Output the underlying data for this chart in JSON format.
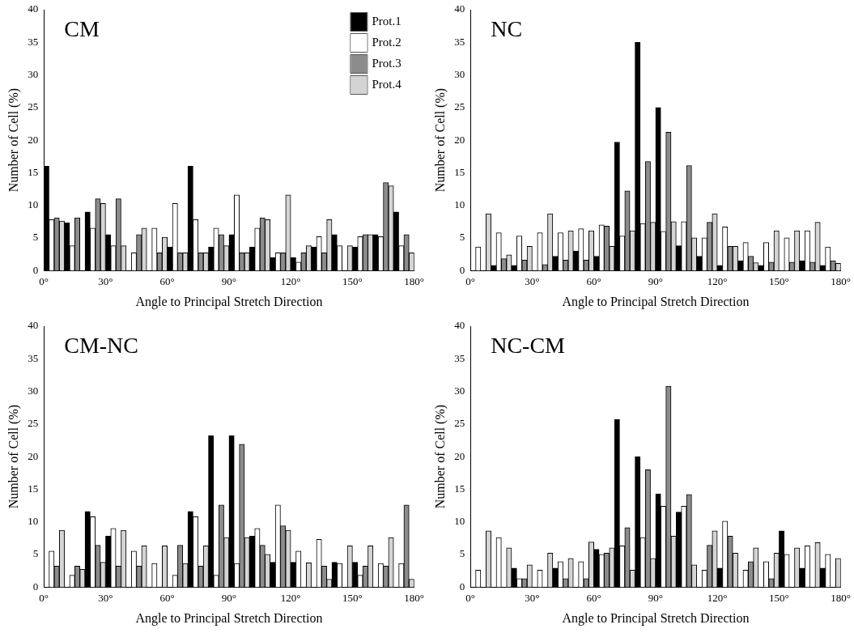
{
  "chart_data": [
    {
      "type": "bar",
      "title": "CM",
      "xlabel": "Angle to Principal Stretch Direction",
      "ylabel": "Number of Cell (%)",
      "x": [
        5,
        15,
        25,
        35,
        45,
        55,
        65,
        75,
        85,
        95,
        105,
        115,
        125,
        135,
        145,
        155,
        165,
        175
      ],
      "xlim": [
        0,
        180
      ],
      "xticks": [
        {
          "value": 0,
          "label": "0°"
        },
        {
          "value": 30,
          "label": "30°"
        },
        {
          "value": 60,
          "label": "60°"
        },
        {
          "value": 90,
          "label": "90°"
        },
        {
          "value": 120,
          "label": "120°"
        },
        {
          "value": 150,
          "label": "150°"
        },
        {
          "value": 180,
          "label": "180°"
        }
      ],
      "ylim": [
        0,
        40
      ],
      "yticks": [
        0,
        5,
        10,
        15,
        20,
        25,
        30,
        35,
        40
      ],
      "grid": false,
      "legend": "top right",
      "series": [
        {
          "name": "Prot.1",
          "color": "#000000",
          "values": [
            16,
            7.3,
            9,
            5.5,
            0,
            0,
            3.6,
            16,
            3.6,
            5.5,
            3.6,
            2,
            2,
            3.6,
            5.5,
            3.6,
            5.5,
            9
          ]
        },
        {
          "name": "Prot.2",
          "color": "#ffffff",
          "values": [
            7.8,
            3.8,
            6.5,
            3.8,
            2.7,
            6.5,
            10.3,
            7.8,
            6.5,
            11.6,
            6.5,
            2.7,
            1.3,
            5.2,
            3.8,
            5.2,
            5.2,
            3.8
          ]
        },
        {
          "name": "Prot.3",
          "color": "#8c8c8c",
          "values": [
            8.1,
            8.1,
            11,
            11,
            5.5,
            2.7,
            2.7,
            2.7,
            5.5,
            2.7,
            8.1,
            2.7,
            2.7,
            2.7,
            0,
            5.5,
            13.5,
            5.5
          ]
        },
        {
          "name": "Prot.4",
          "color": "#d4d4d4",
          "values": [
            7.6,
            0,
            10.3,
            3.8,
            6.5,
            5.1,
            2.7,
            2.7,
            3.8,
            2.7,
            7.8,
            11.6,
            3.8,
            7.8,
            3.8,
            5.5,
            13,
            2.7
          ]
        }
      ]
    },
    {
      "type": "bar",
      "title": "NC",
      "xlabel": "Angle to Principal Stretch Direction",
      "ylabel": "Number of Cell (%)",
      "x": [
        5,
        15,
        25,
        35,
        45,
        55,
        65,
        75,
        85,
        95,
        105,
        115,
        125,
        135,
        145,
        155,
        165,
        175
      ],
      "xlim": [
        0,
        180
      ],
      "xticks": [
        {
          "value": 0,
          "label": "0°"
        },
        {
          "value": 30,
          "label": "30°"
        },
        {
          "value": 60,
          "label": "60°"
        },
        {
          "value": 90,
          "label": "90°"
        },
        {
          "value": 120,
          "label": "120°"
        },
        {
          "value": 150,
          "label": "150°"
        },
        {
          "value": 180,
          "label": "180°"
        }
      ],
      "ylim": [
        0,
        40
      ],
      "yticks": [
        0,
        5,
        10,
        15,
        20,
        25,
        30,
        35,
        40
      ],
      "grid": false,
      "series": [
        {
          "color": "#000000",
          "values": [
            0,
            0.8,
            0.8,
            0,
            2.2,
            3,
            2.2,
            19.7,
            35,
            25,
            3.8,
            2.2,
            0.8,
            1.5,
            0.8,
            0,
            1.5,
            0.8
          ]
        },
        {
          "color": "#ffffff",
          "values": [
            3.6,
            5.8,
            5.3,
            5.8,
            5.8,
            6.4,
            7,
            5.3,
            7.2,
            6,
            7.5,
            5,
            6.7,
            4.3,
            4.3,
            5,
            6.1,
            3.6
          ]
        },
        {
          "color": "#8c8c8c",
          "values": [
            0,
            1.8,
            1.6,
            0.9,
            1.6,
            1.6,
            6.8,
            12.2,
            16.7,
            21.2,
            16.1,
            7.4,
            3.7,
            2.2,
            1.3,
            1.3,
            1.3,
            1.5
          ]
        },
        {
          "color": "#d4d4d4",
          "values": [
            8.7,
            2.4,
            3.7,
            8.7,
            6.1,
            6.1,
            3.7,
            6.1,
            7.4,
            7.5,
            5,
            8.7,
            3.7,
            1.2,
            6.1,
            6.1,
            7.4,
            1.1
          ]
        }
      ]
    },
    {
      "type": "bar",
      "title": "CM-NC",
      "xlabel": "Angle to Principal Stretch Direction",
      "ylabel": "Number of Cell (%)",
      "x": [
        5,
        15,
        25,
        35,
        45,
        55,
        65,
        75,
        85,
        95,
        105,
        115,
        125,
        135,
        145,
        155,
        165,
        175
      ],
      "xlim": [
        0,
        180
      ],
      "xticks": [
        {
          "value": 0,
          "label": "0°"
        },
        {
          "value": 30,
          "label": "30°"
        },
        {
          "value": 60,
          "label": "60°"
        },
        {
          "value": 90,
          "label": "90°"
        },
        {
          "value": 120,
          "label": "120°"
        },
        {
          "value": 150,
          "label": "150°"
        },
        {
          "value": 180,
          "label": "180°"
        }
      ],
      "ylim": [
        0,
        40
      ],
      "yticks": [
        0,
        5,
        10,
        15,
        20,
        25,
        30,
        35,
        40
      ],
      "grid": false,
      "series": [
        {
          "color": "#000000",
          "values": [
            0,
            0,
            11.6,
            7.8,
            0,
            0,
            0,
            11.6,
            23.2,
            23.2,
            7.8,
            3.8,
            3.8,
            0,
            3.8,
            3.8,
            0,
            0
          ]
        },
        {
          "color": "#ffffff",
          "values": [
            5.5,
            1.8,
            10.8,
            9,
            5.5,
            3.6,
            1.8,
            10.8,
            1.8,
            3.6,
            9,
            12.6,
            5.5,
            7.3,
            3.6,
            1.8,
            3.6,
            3.6
          ]
        },
        {
          "color": "#8c8c8c",
          "values": [
            3.2,
            3.2,
            6.4,
            3.2,
            3.2,
            0,
            6.4,
            3.2,
            12.6,
            21.9,
            6.4,
            9.4,
            0,
            3.2,
            0,
            3.2,
            3.2,
            12.6
          ]
        },
        {
          "color": "#d4d4d4",
          "values": [
            8.7,
            2.7,
            3.8,
            8.7,
            6.3,
            6.3,
            3.6,
            6.3,
            7.6,
            7.6,
            5,
            8.7,
            3.7,
            1.2,
            6.3,
            6.3,
            7.6,
            1.2
          ]
        }
      ]
    },
    {
      "type": "bar",
      "title": "NC-CM",
      "xlabel": "Angle to Principal Stretch Direction",
      "ylabel": "Number of Cell (%)",
      "x": [
        5,
        15,
        25,
        35,
        45,
        55,
        65,
        75,
        85,
        95,
        105,
        115,
        125,
        135,
        145,
        155,
        165,
        175
      ],
      "xlim": [
        0,
        180
      ],
      "xticks": [
        {
          "value": 0,
          "label": "0°"
        },
        {
          "value": 30,
          "label": "30°"
        },
        {
          "value": 60,
          "label": "60°"
        },
        {
          "value": 90,
          "label": "90°"
        },
        {
          "value": 120,
          "label": "120°"
        },
        {
          "value": 150,
          "label": "150°"
        },
        {
          "value": 180,
          "label": "180°"
        }
      ],
      "ylim": [
        0,
        40
      ],
      "yticks": [
        0,
        5,
        10,
        15,
        20,
        25,
        30,
        35,
        40
      ],
      "grid": false,
      "series": [
        {
          "color": "#000000",
          "values": [
            0,
            0,
            2.9,
            0,
            2.9,
            0,
            5.8,
            25.7,
            20,
            14.3,
            11.5,
            0,
            2.9,
            0,
            0,
            8.6,
            2.9,
            2.9
          ]
        },
        {
          "color": "#ffffff",
          "values": [
            2.6,
            7.6,
            1.3,
            2.6,
            3.9,
            3.9,
            5,
            6.3,
            7.6,
            12.4,
            12.4,
            2.6,
            10.1,
            2.6,
            3.9,
            5,
            6.3,
            5
          ]
        },
        {
          "color": "#8c8c8c",
          "values": [
            0,
            0,
            1.3,
            0,
            1.3,
            1.3,
            5.2,
            9.1,
            18,
            30.8,
            14.2,
            6.4,
            7.8,
            3.9,
            1.3,
            0,
            0,
            0
          ]
        },
        {
          "color": "#d4d4d4",
          "values": [
            8.6,
            6,
            3.4,
            5.2,
            4.4,
            6.9,
            6,
            2.6,
            4.4,
            7.8,
            3.4,
            8.6,
            5.2,
            6,
            5.2,
            6,
            6.8,
            4.4
          ]
        }
      ]
    }
  ]
}
